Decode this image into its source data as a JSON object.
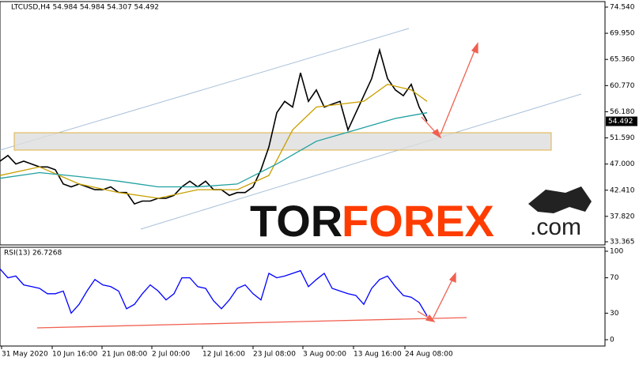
{
  "chart_data": [
    {
      "type": "line",
      "header": "LTCUSD,H4  54.984 54.984 54.307 54.492",
      "price_tag": "54.492",
      "watermark": [
        "TOR",
        "FOREX",
        ".com"
      ],
      "xlim": [
        0,
        765
      ],
      "ylim": [
        32.81,
        75.51
      ],
      "yticks": [
        {
          "value": 74.54,
          "label": "74.540"
        },
        {
          "value": 69.95,
          "label": "69.950"
        },
        {
          "value": 65.36,
          "label": "65.360"
        },
        {
          "value": 60.77,
          "label": "60.770"
        },
        {
          "value": 56.18,
          "label": "56.180"
        },
        {
          "value": 51.59,
          "label": "51.590"
        },
        {
          "value": 47,
          "label": "47.000"
        },
        {
          "value": 42.41,
          "label": "42.410"
        },
        {
          "value": 37.82,
          "label": "37.820"
        },
        33.365
      ],
      "series": [
        {
          "color": "#000000",
          "x": [
            0,
            10,
            20,
            30,
            40,
            50,
            60,
            70,
            80,
            90,
            100,
            110,
            120,
            130,
            140,
            150,
            160,
            170,
            180,
            190,
            200,
            210,
            220,
            230,
            240,
            250,
            260,
            270,
            280,
            290,
            300,
            310,
            320,
            330,
            340,
            350,
            360,
            370,
            380,
            390,
            400,
            410,
            420,
            430,
            440,
            450,
            460,
            470,
            480,
            490,
            500,
            510,
            520,
            530,
            540
          ],
          "values": [
            47.5,
            48.5,
            47,
            47.5,
            47,
            46.5,
            46.5,
            46,
            43.5,
            43,
            43.5,
            43,
            42.5,
            42.5,
            43,
            42,
            42,
            40,
            40.5,
            40.5,
            41,
            41,
            41.5,
            43,
            44,
            43,
            44,
            42.5,
            42.5,
            41.5,
            42,
            42,
            43,
            46,
            50,
            56,
            58,
            57,
            63,
            58,
            60,
            57,
            57.5,
            58,
            53,
            56,
            59,
            62,
            67,
            62,
            60,
            59,
            61,
            57,
            54.5
          ]
        },
        {
          "color": "#c8a000",
          "x": [
            0,
            50,
            100,
            150,
            200,
            250,
            300,
            340,
            370,
            400,
            430,
            460,
            490,
            520,
            540
          ],
          "values": [
            45,
            46.5,
            43.5,
            42,
            41,
            42.5,
            42.5,
            45,
            53,
            57,
            57.5,
            58,
            61,
            60,
            58
          ]
        },
        {
          "color": "#20a0a0",
          "x": [
            0,
            50,
            100,
            150,
            200,
            250,
            300,
            350,
            400,
            450,
            500,
            540
          ],
          "values": [
            44.5,
            45.5,
            44.8,
            44,
            43,
            43,
            43.5,
            47,
            51,
            53,
            55,
            56
          ]
        }
      ]
    },
    {
      "type": "line",
      "title": "RSI(13) 26.7268",
      "xlim": [
        0,
        765
      ],
      "ylim": [
        0,
        100
      ],
      "yticks": [
        100,
        70,
        30,
        0
      ],
      "xticks": [
        {
          "value": 2,
          "label": "31 May 2020"
        },
        {
          "value": 66,
          "label": "10 Jun 16:00"
        },
        {
          "value": 129,
          "label": "21 Jun 08:00"
        },
        {
          "value": 192,
          "label": "2 Jul 00:00"
        },
        {
          "value": 256,
          "label": "12 Jul 16:00"
        },
        {
          "value": 320,
          "label": "23 Jul 08:00"
        },
        {
          "value": 383,
          "label": "3 Aug 00:00"
        },
        {
          "value": 447,
          "label": "13 Aug 16:00"
        },
        {
          "value": 512,
          "label": "24 Aug 08:00"
        }
      ],
      "series": [
        {
          "color": "#0000ff",
          "x": [
            0,
            10,
            20,
            30,
            40,
            50,
            60,
            70,
            80,
            90,
            100,
            110,
            120,
            130,
            140,
            150,
            160,
            170,
            180,
            190,
            200,
            210,
            220,
            230,
            240,
            250,
            260,
            270,
            280,
            290,
            300,
            310,
            320,
            330,
            340,
            350,
            360,
            370,
            380,
            390,
            400,
            410,
            420,
            430,
            440,
            450,
            460,
            470,
            480,
            490,
            500,
            510,
            520,
            530,
            540
          ],
          "values": [
            80,
            70,
            72,
            62,
            60,
            58,
            52,
            52,
            55,
            30,
            40,
            55,
            68,
            62,
            60,
            55,
            35,
            40,
            52,
            62,
            55,
            45,
            52,
            70,
            70,
            60,
            58,
            44,
            35,
            45,
            58,
            62,
            52,
            45,
            75,
            70,
            72,
            75,
            78,
            60,
            68,
            75,
            58,
            55,
            52,
            50,
            40,
            58,
            68,
            72,
            60,
            50,
            48,
            42,
            27
          ]
        }
      ]
    }
  ]
}
